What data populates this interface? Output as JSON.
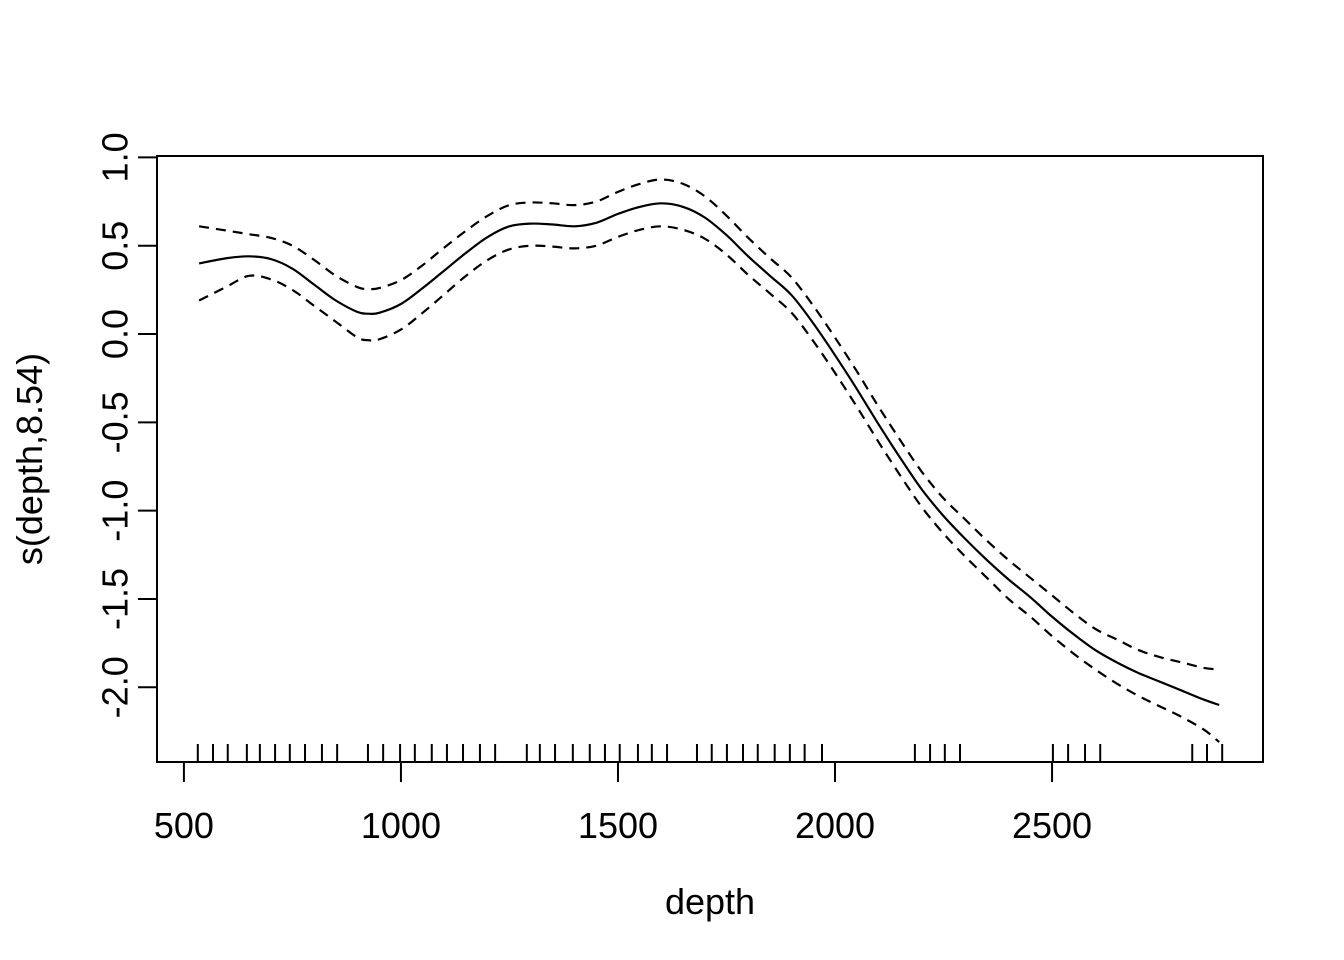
{
  "figure": {
    "background_color": "#ffffff",
    "line_color": "#000000",
    "xlabel": "depth",
    "ylabel": "s(depth,8.54)"
  },
  "chart_data": {
    "type": "line",
    "title": "",
    "xlabel": "depth",
    "ylabel": "s(depth,8.54)",
    "xlim": [
      438,
      2986
    ],
    "ylim": [
      -2.423,
      1.008
    ],
    "grid": false,
    "legend": "none",
    "x_ticks": {
      "values": [
        500,
        1000,
        1500,
        2000,
        2500
      ],
      "labels": [
        "500",
        "1000",
        "1500",
        "2000",
        "2500"
      ]
    },
    "y_ticks": {
      "values": [
        1.0,
        0.5,
        0.0,
        -0.5,
        -1.0,
        -1.5,
        -2.0
      ],
      "labels": [
        "1.0",
        "0.5",
        "0.0",
        "-0.5",
        "-1.0",
        "-1.5",
        "-2.0"
      ]
    },
    "x": [
      535,
      600,
      650,
      700,
      750,
      800,
      850,
      900,
      925,
      950,
      1000,
      1050,
      1100,
      1150,
      1200,
      1250,
      1300,
      1350,
      1400,
      1450,
      1500,
      1550,
      1600,
      1650,
      1700,
      1750,
      1800,
      1850,
      1900,
      1950,
      2000,
      2050,
      2100,
      2150,
      2200,
      2250,
      2300,
      2350,
      2400,
      2450,
      2500,
      2550,
      2600,
      2650,
      2700,
      2750,
      2800,
      2850,
      2885
    ],
    "series": [
      {
        "name": "fit",
        "style": "solid",
        "values": [
          0.4,
          0.43,
          0.44,
          0.425,
          0.37,
          0.28,
          0.19,
          0.125,
          0.115,
          0.12,
          0.17,
          0.26,
          0.36,
          0.46,
          0.55,
          0.61,
          0.625,
          0.62,
          0.61,
          0.63,
          0.68,
          0.72,
          0.74,
          0.72,
          0.66,
          0.56,
          0.44,
          0.33,
          0.22,
          0.06,
          -0.12,
          -0.31,
          -0.51,
          -0.7,
          -0.88,
          -1.03,
          -1.16,
          -1.28,
          -1.39,
          -1.49,
          -1.6,
          -1.7,
          -1.79,
          -1.86,
          -1.92,
          -1.97,
          -2.02,
          -2.07,
          -2.1
        ]
      },
      {
        "name": "upper-ci",
        "style": "dashed",
        "values": [
          0.61,
          0.585,
          0.565,
          0.545,
          0.5,
          0.42,
          0.33,
          0.265,
          0.255,
          0.26,
          0.305,
          0.39,
          0.49,
          0.585,
          0.67,
          0.73,
          0.745,
          0.74,
          0.73,
          0.75,
          0.805,
          0.85,
          0.875,
          0.85,
          0.78,
          0.67,
          0.545,
          0.43,
          0.32,
          0.16,
          -0.02,
          -0.21,
          -0.41,
          -0.6,
          -0.78,
          -0.93,
          -1.05,
          -1.17,
          -1.28,
          -1.38,
          -1.48,
          -1.58,
          -1.67,
          -1.73,
          -1.79,
          -1.83,
          -1.86,
          -1.89,
          -1.9
        ]
      },
      {
        "name": "lower-ci",
        "style": "dashed",
        "values": [
          0.19,
          0.27,
          0.33,
          0.31,
          0.25,
          0.16,
          0.07,
          -0.02,
          -0.035,
          -0.03,
          0.025,
          0.12,
          0.225,
          0.33,
          0.42,
          0.48,
          0.5,
          0.495,
          0.485,
          0.5,
          0.55,
          0.59,
          0.61,
          0.59,
          0.54,
          0.45,
          0.335,
          0.23,
          0.12,
          -0.04,
          -0.22,
          -0.41,
          -0.61,
          -0.8,
          -0.98,
          -1.13,
          -1.26,
          -1.38,
          -1.5,
          -1.6,
          -1.71,
          -1.81,
          -1.9,
          -1.98,
          -2.05,
          -2.11,
          -2.17,
          -2.24,
          -2.31
        ]
      }
    ],
    "rug_x": [
      532,
      567,
      601,
      645,
      675,
      710,
      744,
      779,
      818,
      853,
      924,
      959,
      998,
      1032,
      1071,
      1106,
      1143,
      1182,
      1217,
      1290,
      1320,
      1355,
      1396,
      1435,
      1470,
      1504,
      1546,
      1578,
      1613,
      1682,
      1716,
      1751,
      1788,
      1822,
      1861,
      1896,
      1930,
      1970,
      2184,
      2219,
      2253,
      2288,
      2502,
      2537,
      2576,
      2611,
      2823,
      2857,
      2892
    ]
  }
}
